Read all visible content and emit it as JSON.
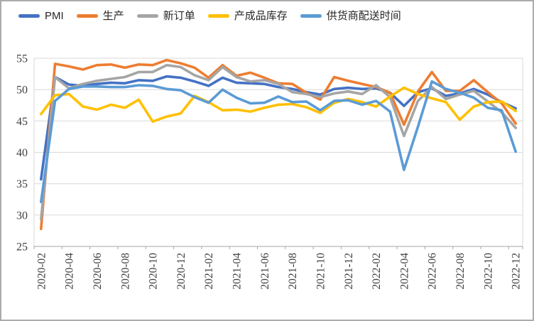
{
  "chart_data": {
    "type": "line",
    "title": "",
    "xlabel": "",
    "ylabel": "",
    "ylim": [
      25,
      55
    ],
    "yticks": [
      25,
      30,
      35,
      40,
      45,
      50,
      55
    ],
    "grid": true,
    "legend_position": "top",
    "categories": [
      "2020-02",
      "2020-03",
      "2020-04",
      "2020-05",
      "2020-06",
      "2020-07",
      "2020-08",
      "2020-09",
      "2020-10",
      "2020-11",
      "2020-12",
      "2021-01",
      "2021-02",
      "2021-03",
      "2021-04",
      "2021-05",
      "2021-06",
      "2021-07",
      "2021-08",
      "2021-09",
      "2021-10",
      "2021-11",
      "2021-12",
      "2022-01",
      "2022-02",
      "2022-03",
      "2022-04",
      "2022-05",
      "2022-06",
      "2022-07",
      "2022-08",
      "2022-09",
      "2022-10",
      "2022-11",
      "2022-12"
    ],
    "xtick_labels": [
      "2020-02",
      "2020-04",
      "2020-06",
      "2020-08",
      "2020-10",
      "2020-12",
      "2021-02",
      "2021-04",
      "2021-06",
      "2021-08",
      "2021-10",
      "2021-12",
      "2022-02",
      "2022-04",
      "2022-06",
      "2022-08",
      "2022-10",
      "2022-12"
    ],
    "series": [
      {
        "id": "pmi",
        "name": "PMI",
        "color": "#4472C4",
        "values": [
          35.7,
          52.0,
          50.8,
          50.6,
          50.9,
          51.1,
          51.0,
          51.5,
          51.4,
          52.1,
          51.9,
          51.3,
          50.6,
          51.9,
          51.1,
          51.0,
          50.9,
          50.4,
          50.1,
          49.6,
          49.2,
          50.1,
          50.3,
          50.1,
          50.2,
          49.5,
          47.4,
          49.6,
          50.2,
          49.0,
          49.4,
          50.1,
          49.2,
          48.0,
          47.0
        ]
      },
      {
        "id": "production",
        "name": "生产",
        "color": "#ED7D31",
        "values": [
          27.8,
          54.1,
          53.7,
          53.2,
          53.9,
          54.0,
          53.5,
          54.0,
          53.9,
          54.7,
          54.2,
          53.5,
          51.9,
          53.9,
          52.2,
          52.7,
          51.9,
          51.0,
          50.9,
          49.5,
          48.4,
          52.0,
          51.4,
          50.9,
          50.4,
          49.5,
          44.4,
          49.7,
          52.8,
          49.8,
          49.8,
          51.5,
          49.6,
          47.8,
          44.6
        ]
      },
      {
        "id": "new-orders",
        "name": "新订单",
        "color": "#A5A5A5",
        "values": [
          29.3,
          52.0,
          50.2,
          50.9,
          51.4,
          51.7,
          52.0,
          52.8,
          52.8,
          53.9,
          53.6,
          52.3,
          51.5,
          53.6,
          52.0,
          51.3,
          51.5,
          50.9,
          49.6,
          49.3,
          48.8,
          49.4,
          49.7,
          49.3,
          50.7,
          48.8,
          42.6,
          48.2,
          50.4,
          48.5,
          49.2,
          49.8,
          48.1,
          46.4,
          43.9
        ]
      },
      {
        "id": "finished-goods-inventory",
        "name": "产成品库存",
        "color": "#FFC000",
        "values": [
          46.1,
          49.1,
          49.3,
          47.3,
          46.8,
          47.6,
          47.1,
          48.4,
          44.9,
          45.7,
          46.2,
          49.0,
          48.0,
          46.7,
          46.8,
          46.5,
          47.1,
          47.6,
          47.7,
          47.2,
          46.3,
          47.9,
          48.5,
          48.0,
          47.3,
          48.9,
          50.3,
          49.3,
          48.6,
          48.0,
          45.2,
          47.3,
          48.0,
          48.1,
          46.6
        ]
      },
      {
        "id": "supplier-delivery-time",
        "name": "供货商配送时间",
        "color": "#5B9BD5",
        "values": [
          32.1,
          48.2,
          50.1,
          50.5,
          50.5,
          50.4,
          50.4,
          50.7,
          50.6,
          50.1,
          49.9,
          48.8,
          47.9,
          50.0,
          48.7,
          47.8,
          47.9,
          48.9,
          48.0,
          48.1,
          46.7,
          48.2,
          48.3,
          47.6,
          48.2,
          46.5,
          37.2,
          44.1,
          51.3,
          50.1,
          49.5,
          48.7,
          47.1,
          46.7,
          40.1
        ]
      }
    ],
    "colors": {
      "background": "#FFFFFF",
      "frame_border": "#ABABAB",
      "gridline": "#D9D9D9",
      "axis": "#A6A6A6",
      "tick_label": "#404040",
      "legend_text": "#262626"
    }
  }
}
